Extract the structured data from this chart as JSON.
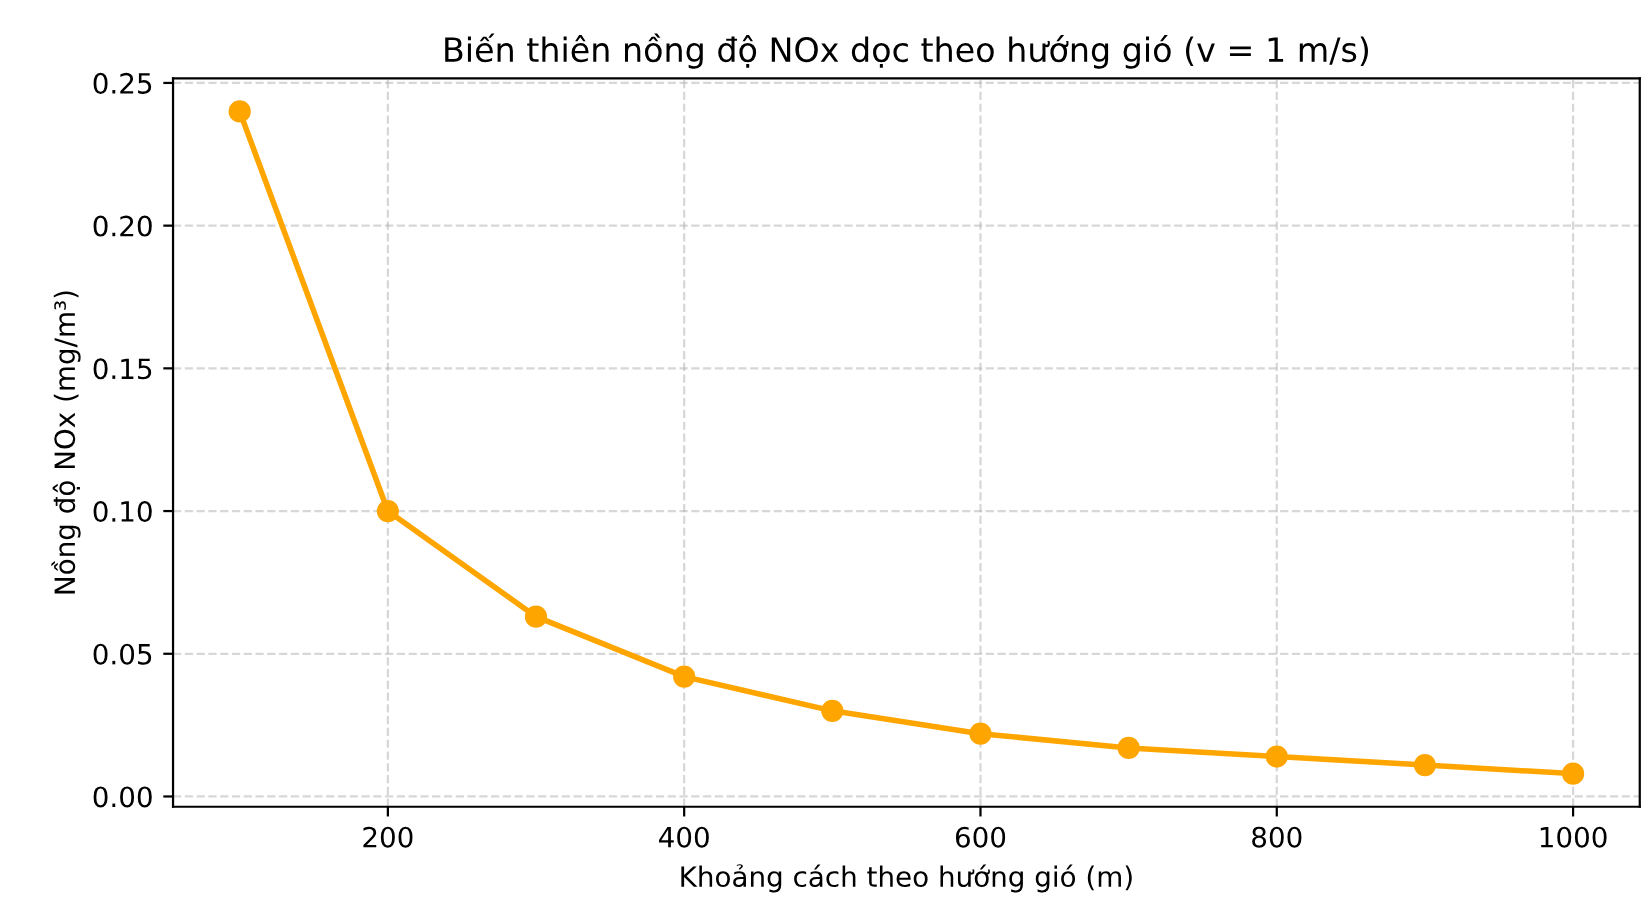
{
  "chart_data": {
    "type": "line",
    "title": "Biến thiên nồng độ NOx dọc theo hướng gió (v = 1 m/s)",
    "xlabel": "Khoảng cách theo hướng gió (m)",
    "ylabel": "Nồng độ NOx (mg/m³)",
    "x": [
      100,
      200,
      300,
      400,
      500,
      600,
      700,
      800,
      900,
      1000
    ],
    "series": [
      {
        "color": "#ffa500",
        "values": [
          0.24,
          0.1,
          0.063,
          0.042,
          0.03,
          0.022,
          0.017,
          0.014,
          0.011,
          0.008
        ]
      }
    ],
    "xlim": [
      55,
      1045
    ],
    "xticks": [
      200,
      400,
      600,
      800,
      1000
    ],
    "ylim": [
      -0.0036,
      0.2516
    ],
    "yticks": [
      {
        "value": 0,
        "label": "0.00"
      },
      {
        "value": 0.05,
        "label": "0.05"
      },
      {
        "value": 0.1,
        "label": "0.10"
      },
      {
        "value": 0.15,
        "label": "0.15"
      },
      {
        "value": 0.2,
        "label": "0.20"
      },
      {
        "value": 0.25,
        "label": "0.25"
      }
    ],
    "grid": true,
    "marker": "circle",
    "line_style": "solid"
  }
}
